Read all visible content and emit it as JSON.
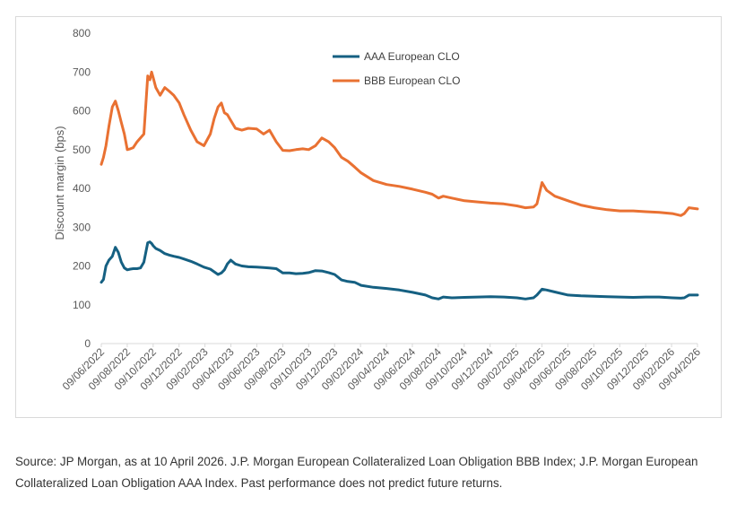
{
  "chart_data": {
    "type": "line",
    "title": "",
    "ylabel": "Discount margin (bps)",
    "xlabel": "",
    "ylim": [
      0,
      800
    ],
    "yticks": [
      0,
      100,
      200,
      300,
      400,
      500,
      600,
      700,
      800
    ],
    "xlim": [
      "2022-06-09",
      "2026-04-09"
    ],
    "xtick_labels": [
      "09/06/2022",
      "09/08/2022",
      "09/10/2022",
      "09/12/2022",
      "09/02/2023",
      "09/04/2023",
      "09/06/2023",
      "09/08/2023",
      "09/10/2023",
      "09/12/2023",
      "09/02/2024",
      "09/04/2024",
      "09/06/2024",
      "09/08/2024",
      "09/10/2024",
      "09/12/2024",
      "09/02/2025",
      "09/04/2025",
      "09/06/2025",
      "09/08/2025",
      "09/10/2025",
      "09/12/2025",
      "09/02/2026",
      "09/04/2026"
    ],
    "grid": false,
    "legend_position": "top-center",
    "series": [
      {
        "name": "AAA European CLO",
        "color": "#156082",
        "x": [
          "2022-06-09",
          "2022-06-14",
          "2022-06-20",
          "2022-06-27",
          "2022-07-05",
          "2022-07-12",
          "2022-07-19",
          "2022-07-26",
          "2022-08-02",
          "2022-08-09",
          "2022-08-16",
          "2022-08-23",
          "2022-09-01",
          "2022-09-09",
          "2022-09-17",
          "2022-09-26",
          "2022-10-01",
          "2022-10-05",
          "2022-10-09",
          "2022-10-15",
          "2022-10-25",
          "2022-11-05",
          "2022-11-16",
          "2022-11-26",
          "2022-12-09",
          "2022-12-20",
          "2023-01-05",
          "2023-01-20",
          "2023-02-05",
          "2023-02-20",
          "2023-03-01",
          "2023-03-10",
          "2023-03-18",
          "2023-03-25",
          "2023-04-01",
          "2023-04-09",
          "2023-04-20",
          "2023-05-05",
          "2023-05-20",
          "2023-06-09",
          "2023-06-25",
          "2023-07-09",
          "2023-07-25",
          "2023-08-09",
          "2023-08-25",
          "2023-09-09",
          "2023-09-25",
          "2023-10-09",
          "2023-10-25",
          "2023-11-09",
          "2023-11-25",
          "2023-12-09",
          "2023-12-25",
          "2024-01-09",
          "2024-01-25",
          "2024-02-09",
          "2024-03-09",
          "2024-04-09",
          "2024-05-09",
          "2024-06-09",
          "2024-07-09",
          "2024-07-25",
          "2024-08-09",
          "2024-08-20",
          "2024-09-09",
          "2024-10-09",
          "2024-11-09",
          "2024-12-09",
          "2025-01-09",
          "2025-02-09",
          "2025-03-01",
          "2025-03-20",
          "2025-03-28",
          "2025-04-09",
          "2025-04-20",
          "2025-05-09",
          "2025-06-09",
          "2025-07-09",
          "2025-08-09",
          "2025-09-09",
          "2025-10-09",
          "2025-11-09",
          "2025-12-09",
          "2026-01-09",
          "2026-02-09",
          "2026-03-01",
          "2026-03-09",
          "2026-03-20",
          "2026-04-09"
        ],
        "values": [
          158,
          165,
          200,
          215,
          225,
          248,
          235,
          210,
          195,
          190,
          192,
          193,
          193,
          195,
          210,
          260,
          262,
          258,
          252,
          245,
          240,
          232,
          228,
          225,
          222,
          218,
          212,
          205,
          197,
          192,
          185,
          178,
          182,
          190,
          205,
          215,
          205,
          200,
          198,
          197,
          196,
          195,
          193,
          182,
          182,
          180,
          181,
          183,
          188,
          187,
          183,
          178,
          164,
          160,
          158,
          150,
          145,
          142,
          138,
          132,
          125,
          118,
          115,
          120,
          118,
          119,
          120,
          121,
          120,
          118,
          115,
          118,
          125,
          140,
          138,
          133,
          125,
          123,
          122,
          121,
          120,
          119,
          120,
          120,
          118,
          117,
          118,
          125,
          125
        ]
      },
      {
        "name": "BBB European CLO",
        "color": "#e97132",
        "x": [
          "2022-06-09",
          "2022-06-14",
          "2022-06-20",
          "2022-06-27",
          "2022-07-05",
          "2022-07-12",
          "2022-07-19",
          "2022-07-26",
          "2022-08-02",
          "2022-08-09",
          "2022-08-16",
          "2022-08-23",
          "2022-09-01",
          "2022-09-09",
          "2022-09-17",
          "2022-09-26",
          "2022-10-01",
          "2022-10-05",
          "2022-10-09",
          "2022-10-15",
          "2022-10-25",
          "2022-11-05",
          "2022-11-16",
          "2022-11-26",
          "2022-12-09",
          "2022-12-20",
          "2023-01-05",
          "2023-01-20",
          "2023-02-05",
          "2023-02-20",
          "2023-03-01",
          "2023-03-10",
          "2023-03-18",
          "2023-03-25",
          "2023-04-01",
          "2023-04-09",
          "2023-04-20",
          "2023-05-05",
          "2023-05-20",
          "2023-06-09",
          "2023-06-25",
          "2023-07-09",
          "2023-07-25",
          "2023-08-09",
          "2023-08-25",
          "2023-09-09",
          "2023-09-25",
          "2023-10-09",
          "2023-10-25",
          "2023-11-09",
          "2023-11-25",
          "2023-12-09",
          "2023-12-25",
          "2024-01-09",
          "2024-01-25",
          "2024-02-09",
          "2024-03-09",
          "2024-04-09",
          "2024-05-09",
          "2024-06-09",
          "2024-07-09",
          "2024-07-25",
          "2024-08-09",
          "2024-08-20",
          "2024-09-09",
          "2024-10-09",
          "2024-11-09",
          "2024-12-09",
          "2025-01-09",
          "2025-02-09",
          "2025-03-01",
          "2025-03-20",
          "2025-03-28",
          "2025-04-09",
          "2025-04-20",
          "2025-05-09",
          "2025-06-09",
          "2025-07-09",
          "2025-08-09",
          "2025-09-09",
          "2025-10-09",
          "2025-11-09",
          "2025-12-09",
          "2026-01-09",
          "2026-02-09",
          "2026-03-01",
          "2026-03-09",
          "2026-03-20",
          "2026-04-09"
        ],
        "values": [
          462,
          480,
          510,
          560,
          610,
          625,
          600,
          570,
          540,
          500,
          502,
          505,
          520,
          530,
          540,
          690,
          680,
          700,
          685,
          660,
          640,
          660,
          650,
          640,
          620,
          590,
          550,
          520,
          510,
          540,
          580,
          610,
          620,
          595,
          590,
          575,
          555,
          550,
          555,
          553,
          540,
          550,
          520,
          498,
          497,
          500,
          502,
          500,
          510,
          530,
          520,
          505,
          480,
          470,
          455,
          440,
          420,
          410,
          405,
          398,
          390,
          385,
          375,
          380,
          375,
          368,
          365,
          362,
          360,
          355,
          350,
          352,
          360,
          415,
          395,
          380,
          368,
          357,
          350,
          345,
          342,
          342,
          340,
          338,
          335,
          330,
          335,
          350,
          347
        ]
      }
    ]
  },
  "source_note": "Source: JP Morgan, as at 10 April 2026. J.P. Morgan European Collateralized Loan Obligation BBB Index; J.P. Morgan European Collateralized Loan Obligation AAA Index. Past performance does not predict future returns."
}
